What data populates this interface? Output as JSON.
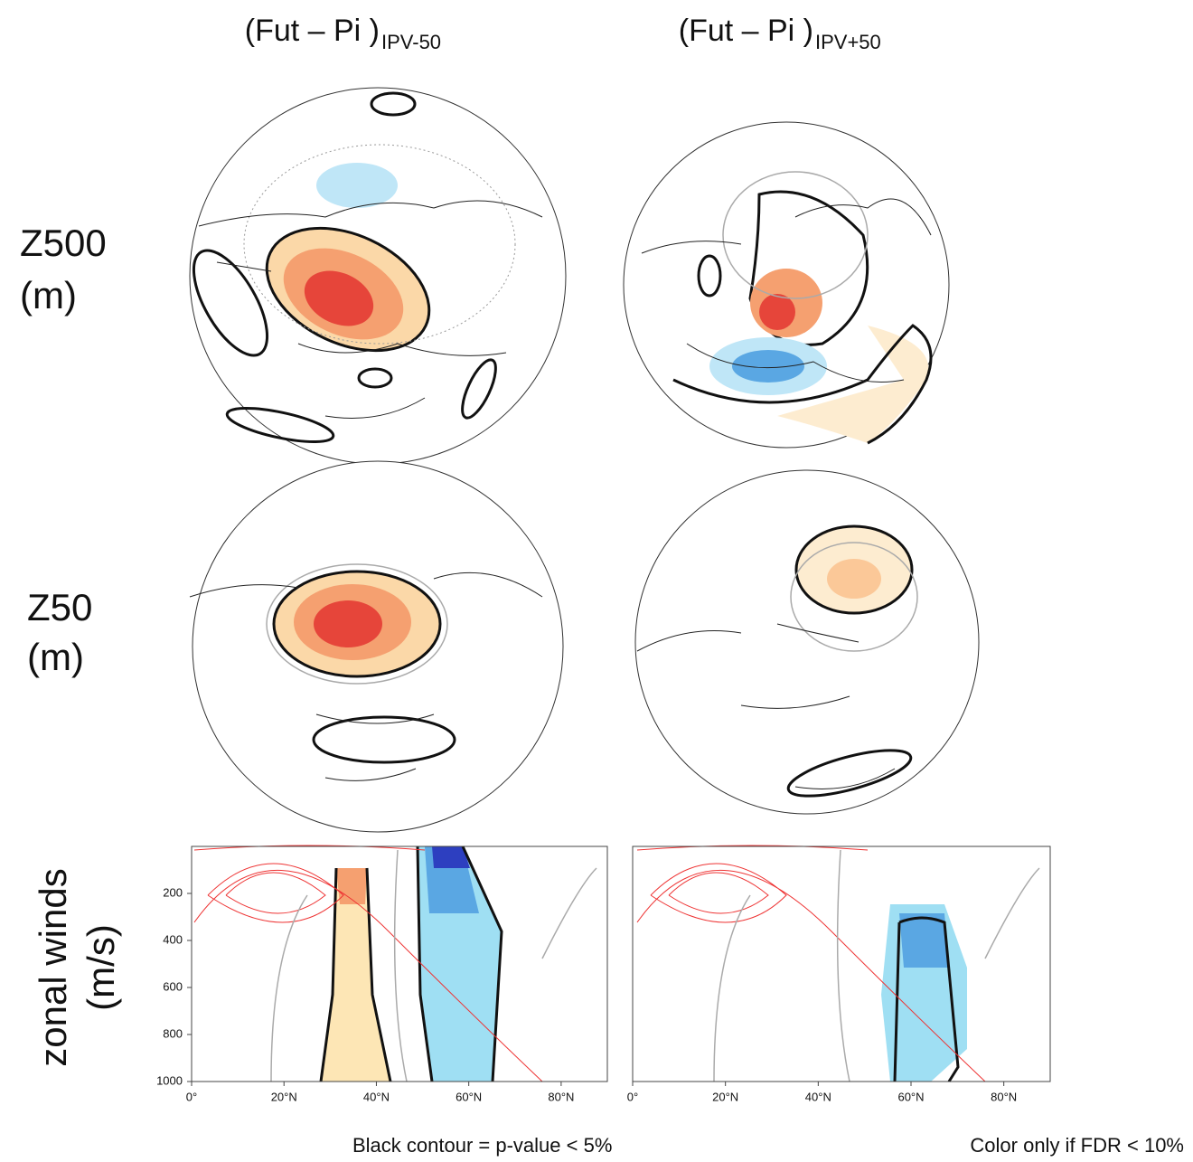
{
  "column_titles": [
    {
      "text": "(Fut – Pi )",
      "subscript": "IPV-50"
    },
    {
      "text": "(Fut – Pi )",
      "subscript": "IPV+50"
    }
  ],
  "row_labels": [
    [
      "Z500",
      "(m)"
    ],
    [
      "Z50",
      "(m)"
    ],
    [
      "zonal winds",
      "(m/s)"
    ]
  ],
  "chart_data": [
    {
      "type": "contour",
      "xlim": [
        0,
        90
      ],
      "ylim": [
        1000,
        0
      ],
      "xticks": [
        {
          "value": 0,
          "label": "0°"
        },
        {
          "value": 20,
          "label": "20°N"
        },
        {
          "value": 40,
          "label": "40°N"
        },
        {
          "value": 60,
          "label": "60°N"
        },
        {
          "value": 80,
          "label": "80°N"
        }
      ],
      "yticks": [
        200,
        400,
        600,
        800,
        1000
      ]
    },
    {
      "type": "contour",
      "xlim": [
        0,
        90
      ],
      "ylim": [
        1000,
        0
      ],
      "xticks": [
        {
          "value": 0,
          "label": "0°"
        },
        {
          "value": 20,
          "label": "20°N"
        },
        {
          "value": 40,
          "label": "40°N"
        },
        {
          "value": 60,
          "label": "60°N"
        },
        {
          "value": 80,
          "label": "80°N"
        }
      ]
    }
  ],
  "notes": [
    "Black contour =  p-value < 5%",
    "Color only if FDR < 10%"
  ]
}
